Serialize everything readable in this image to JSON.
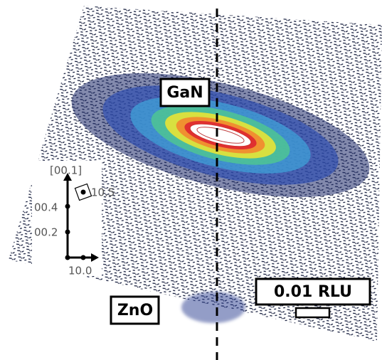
{
  "labels": {
    "gan": "GaN",
    "zno": "ZnO",
    "scale": "0.01 RLU"
  },
  "inset": {
    "axis": "[00.1]",
    "ticks": [
      "00.4",
      "00.2",
      "10.0"
    ],
    "point": "10.5"
  }
}
